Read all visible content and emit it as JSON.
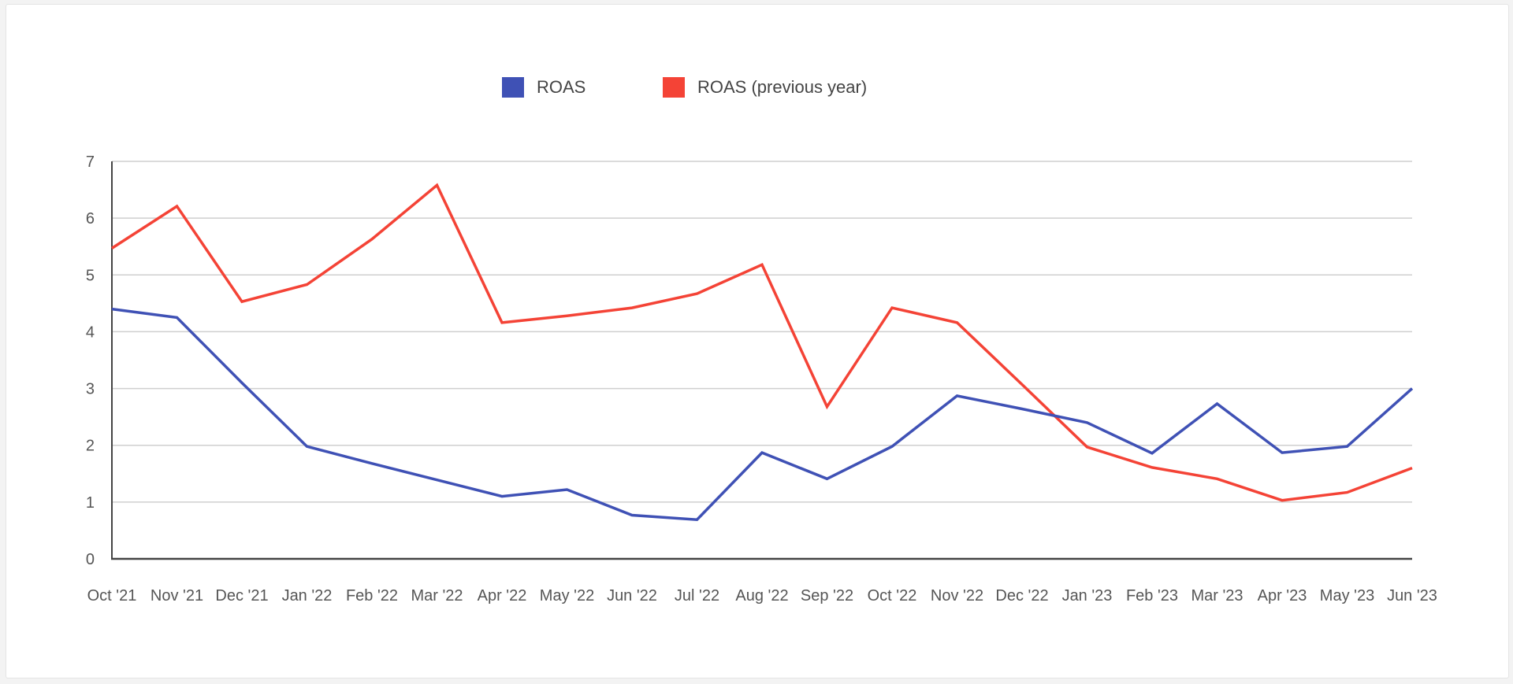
{
  "chart_data": {
    "type": "line",
    "categories": [
      "Oct '21",
      "Nov '21",
      "Dec '21",
      "Jan '22",
      "Feb '22",
      "Mar '22",
      "Apr '22",
      "May '22",
      "Jun '22",
      "Jul '22",
      "Aug '22",
      "Sep '22",
      "Oct '22",
      "Nov '22",
      "Dec '22",
      "Jan '23",
      "Feb '23",
      "Mar '23",
      "Apr '23",
      "May '23",
      "Jun '23"
    ],
    "series": [
      {
        "name": "ROAS",
        "color": "#3f51b5",
        "values": [
          4.4,
          4.25,
          3.1,
          1.98,
          1.68,
          1.39,
          1.1,
          1.22,
          0.77,
          0.69,
          1.87,
          1.41,
          1.98,
          2.87,
          2.64,
          2.4,
          1.86,
          2.73,
          1.87,
          1.98,
          3.0
        ]
      },
      {
        "name": "ROAS (previous year)",
        "color": "#f44336",
        "values": [
          5.47,
          6.21,
          4.53,
          4.83,
          5.63,
          6.58,
          4.16,
          4.28,
          4.42,
          4.67,
          5.18,
          2.68,
          4.42,
          4.16,
          3.07,
          1.97,
          1.61,
          1.41,
          1.03,
          1.17,
          1.6
        ]
      }
    ],
    "y_ticks": [
      0,
      1,
      2,
      3,
      4,
      5,
      6,
      7
    ],
    "ylim": [
      0,
      7
    ],
    "grid": true,
    "legend_position": "top-center",
    "title": "",
    "xlabel": "",
    "ylabel": ""
  }
}
